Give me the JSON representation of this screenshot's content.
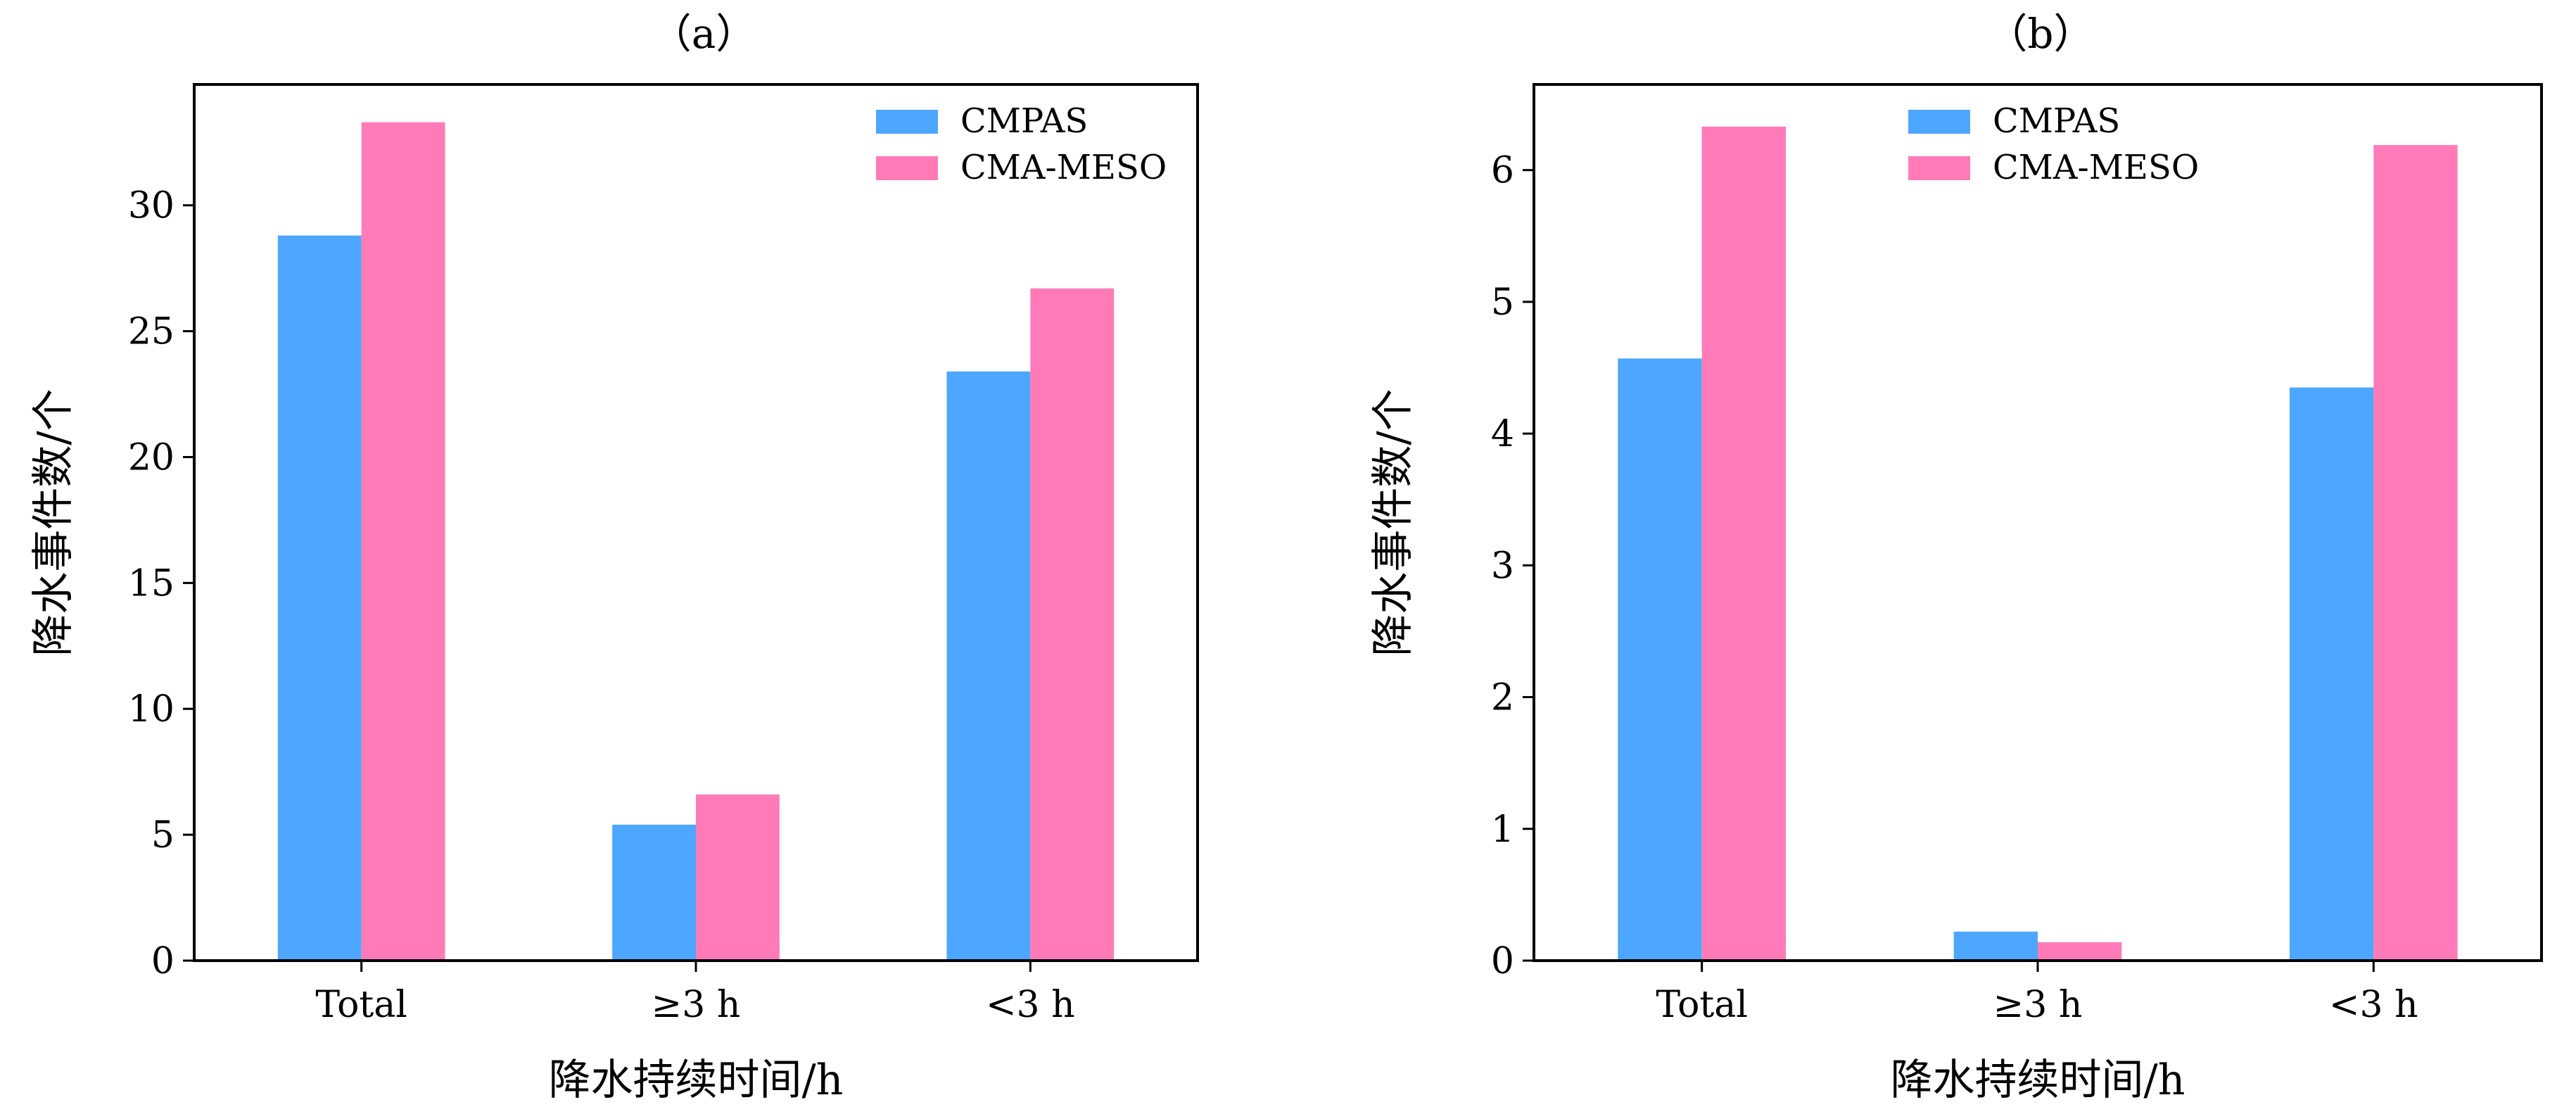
{
  "chart_data": [
    {
      "type": "bar",
      "title": "（a）",
      "xlabel": "降水持续时间/h",
      "ylabel": "降水事件数/个",
      "categories": [
        "Total",
        "≥3 h",
        "<3 h"
      ],
      "series": [
        {
          "name": "CMPAS",
          "color": "#4DA6FF",
          "values": [
            28.8,
            5.4,
            23.4
          ]
        },
        {
          "name": "CMA-MESO",
          "color": "#FF7BB8",
          "values": [
            33.3,
            6.6,
            26.7
          ]
        }
      ],
      "ylim": [
        0,
        34.8
      ],
      "yticks": [
        0,
        5,
        10,
        15,
        20,
        25,
        30
      ],
      "legend_position": "top-right",
      "grid": false
    },
    {
      "type": "bar",
      "title": "（b）",
      "xlabel": "降水持续时间/h",
      "ylabel": "降水事件数/个",
      "categories": [
        "Total",
        "≥3 h",
        "<3 h"
      ],
      "series": [
        {
          "name": "CMPAS",
          "color": "#4DA6FF",
          "values": [
            4.57,
            0.22,
            4.35
          ]
        },
        {
          "name": "CMA-MESO",
          "color": "#FF7BB8",
          "values": [
            6.33,
            0.14,
            6.19
          ]
        }
      ],
      "ylim": [
        0,
        6.65
      ],
      "yticks": [
        0,
        1,
        2,
        3,
        4,
        5,
        6
      ],
      "legend_position": "top-center",
      "grid": false
    }
  ]
}
